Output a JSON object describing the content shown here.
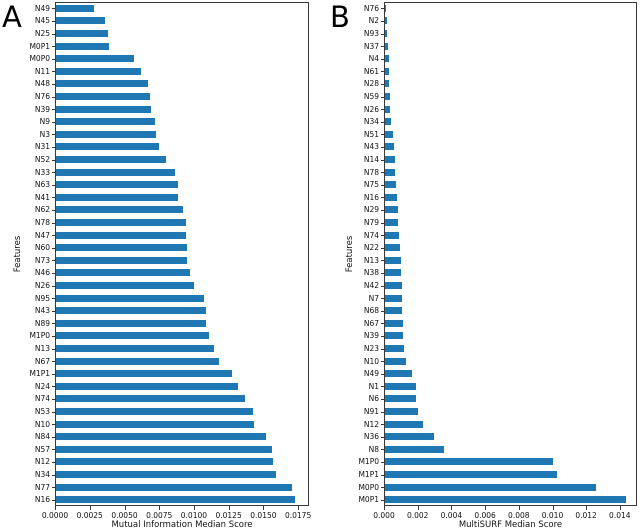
{
  "figure": {
    "background_color": "#ffffff",
    "bar_color": "#1f77b4",
    "axis_color": "#3a3a3a",
    "text_color": "#111111"
  },
  "chart_data": [
    {
      "type": "bar",
      "orientation": "horizontal",
      "panel_letter": "A",
      "xlabel": "Mutual Information Median Score",
      "ylabel": "Features",
      "grid": false,
      "legend": null,
      "xlim": [
        0,
        0.01814
      ],
      "xticks": [
        0,
        0.0025,
        0.005,
        0.0075,
        0.01,
        0.0125,
        0.015,
        0.0175
      ],
      "xtick_labels": [
        "0.0000",
        "0.0025",
        "0.0050",
        "0.0075",
        "0.0100",
        "0.0125",
        "0.0150",
        "0.0175"
      ],
      "categories": [
        "N49",
        "N45",
        "N25",
        "M0P1",
        "M0P0",
        "N11",
        "N48",
        "N76",
        "N39",
        "N9",
        "N3",
        "N31",
        "N52",
        "N33",
        "N63",
        "N41",
        "N62",
        "N78",
        "N47",
        "N60",
        "N73",
        "N46",
        "N26",
        "N95",
        "N43",
        "N89",
        "M1P0",
        "N13",
        "N67",
        "M1P1",
        "N24",
        "N74",
        "N53",
        "N10",
        "N84",
        "N57",
        "N12",
        "N34",
        "N77",
        "N16"
      ],
      "values": [
        0.00275,
        0.00354,
        0.00371,
        0.00383,
        0.00562,
        0.00615,
        0.00659,
        0.00677,
        0.0068,
        0.00713,
        0.00716,
        0.00742,
        0.00788,
        0.00857,
        0.00876,
        0.00879,
        0.00915,
        0.00934,
        0.00936,
        0.00944,
        0.00946,
        0.00967,
        0.00991,
        0.01063,
        0.01078,
        0.01082,
        0.01104,
        0.0114,
        0.01171,
        0.01264,
        0.01312,
        0.01362,
        0.01415,
        0.01422,
        0.01511,
        0.01554,
        0.01563,
        0.01583,
        0.01698,
        0.01719
      ]
    },
    {
      "type": "bar",
      "orientation": "horizontal",
      "panel_letter": "B",
      "xlabel": "MultiSURF Median Score",
      "ylabel": "Features",
      "grid": false,
      "legend": null,
      "xlim": [
        0,
        0.0149
      ],
      "xticks": [
        0,
        0.002,
        0.004,
        0.006,
        0.008,
        0.01,
        0.012,
        0.014
      ],
      "xtick_labels": [
        "0.000",
        "0.002",
        "0.004",
        "0.006",
        "0.008",
        "0.010",
        "0.012",
        "0.014"
      ],
      "categories": [
        "N76",
        "N2",
        "N93",
        "N37",
        "N4",
        "N61",
        "N28",
        "N59",
        "N26",
        "N34",
        "N51",
        "N43",
        "N14",
        "N78",
        "N75",
        "N16",
        "N29",
        "N79",
        "N74",
        "N22",
        "N13",
        "N38",
        "N42",
        "N7",
        "N68",
        "N67",
        "N39",
        "N23",
        "N10",
        "N49",
        "N1",
        "N6",
        "N91",
        "N12",
        "N36",
        "N8",
        "M1P0",
        "M1P1",
        "M0P0",
        "M0P1"
      ],
      "values": [
        3e-05,
        0.00012,
        0.00013,
        0.00019,
        0.00023,
        0.00024,
        0.00026,
        0.00027,
        0.00031,
        0.00036,
        0.00046,
        0.00056,
        0.0006,
        0.00062,
        0.00064,
        0.00072,
        0.00076,
        0.00078,
        0.0008,
        0.0009,
        0.00092,
        0.00097,
        0.00099,
        0.001,
        0.00101,
        0.00104,
        0.00109,
        0.00113,
        0.00123,
        0.00162,
        0.00181,
        0.00184,
        0.00198,
        0.00226,
        0.00293,
        0.00347,
        0.00995,
        0.01022,
        0.01255,
        0.0143
      ]
    }
  ]
}
